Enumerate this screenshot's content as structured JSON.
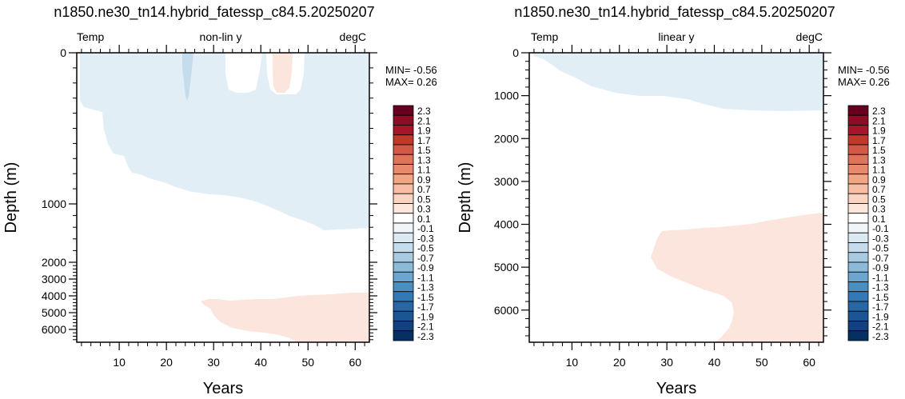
{
  "colors": {
    "neg_light": "#e2eef6",
    "neg_mid": "#c4dcec",
    "pos_light": "#fbe5dc"
  },
  "colorbar": {
    "levels": [
      "2.3",
      "2.1",
      "1.9",
      "1.7",
      "1.5",
      "1.3",
      "1.1",
      "0.9",
      "0.7",
      "0.5",
      "0.3",
      "0.1",
      "-0.1",
      "-0.3",
      "-0.5",
      "-0.7",
      "-0.9",
      "-1.1",
      "-1.3",
      "-1.5",
      "-1.7",
      "-1.9",
      "-2.1",
      "-2.3"
    ],
    "colors": [
      "#67001f",
      "#8e0c25",
      "#a81529",
      "#c0392b",
      "#d05a45",
      "#dc7559",
      "#e8896d",
      "#f4a582",
      "#f8bea4",
      "#fbd3c0",
      "#fde7dc",
      "#ffffff",
      "#f0f5fa",
      "#dbe9f3",
      "#c6dcec",
      "#a8cbe2",
      "#8cbad9",
      "#6ca5cf",
      "#4a8fc2",
      "#3379b5",
      "#2667a8",
      "#1b5594",
      "#104280",
      "#053061"
    ]
  },
  "chart_data": [
    {
      "type": "contour",
      "title": "n1850.ne30_tn14.hybrid_fatessp_c84.5.20250207",
      "left_label": "Temp",
      "center_label": "non-lin y",
      "right_label": "degC",
      "xlabel": "Years",
      "ylabel": "Depth (m)",
      "xlim": [
        1,
        63
      ],
      "ylim": [
        6750,
        0
      ],
      "yscale": "non-linear",
      "x_ticks": [
        10,
        20,
        30,
        40,
        50,
        60
      ],
      "y_ticks": [
        0,
        1000,
        2000,
        3000,
        4000,
        5000,
        6000
      ],
      "min_label": "MIN= -0.56",
      "max_label": "MAX=  0.26",
      "contour_levels": [
        -2.3,
        -2.1,
        -1.9,
        -1.7,
        -1.5,
        -1.3,
        -1.1,
        -0.9,
        -0.7,
        -0.5,
        -0.3,
        -0.1,
        0.1,
        0.3,
        0.5,
        0.7,
        0.9,
        1.1,
        1.3,
        1.5,
        1.7,
        1.9,
        2.1,
        2.3
      ]
    },
    {
      "type": "contour",
      "title": "n1850.ne30_tn14.hybrid_fatessp_c84.5.20250207",
      "left_label": "Temp",
      "center_label": "linear y",
      "right_label": "degC",
      "xlabel": "Years",
      "ylabel": "Depth (m)",
      "xlim": [
        1,
        63
      ],
      "ylim": [
        6750,
        0
      ],
      "yscale": "linear",
      "x_ticks": [
        10,
        20,
        30,
        40,
        50,
        60
      ],
      "y_ticks": [
        0,
        1000,
        2000,
        3000,
        4000,
        5000,
        6000
      ],
      "min_label": "MIN= -0.56",
      "max_label": "MAX=  0.26",
      "contour_levels": [
        -2.3,
        -2.1,
        -1.9,
        -1.7,
        -1.5,
        -1.3,
        -1.1,
        -0.9,
        -0.7,
        -0.5,
        -0.3,
        -0.1,
        0.1,
        0.3,
        0.5,
        0.7,
        0.9,
        1.1,
        1.3,
        1.5,
        1.7,
        1.9,
        2.1,
        2.3
      ]
    }
  ]
}
